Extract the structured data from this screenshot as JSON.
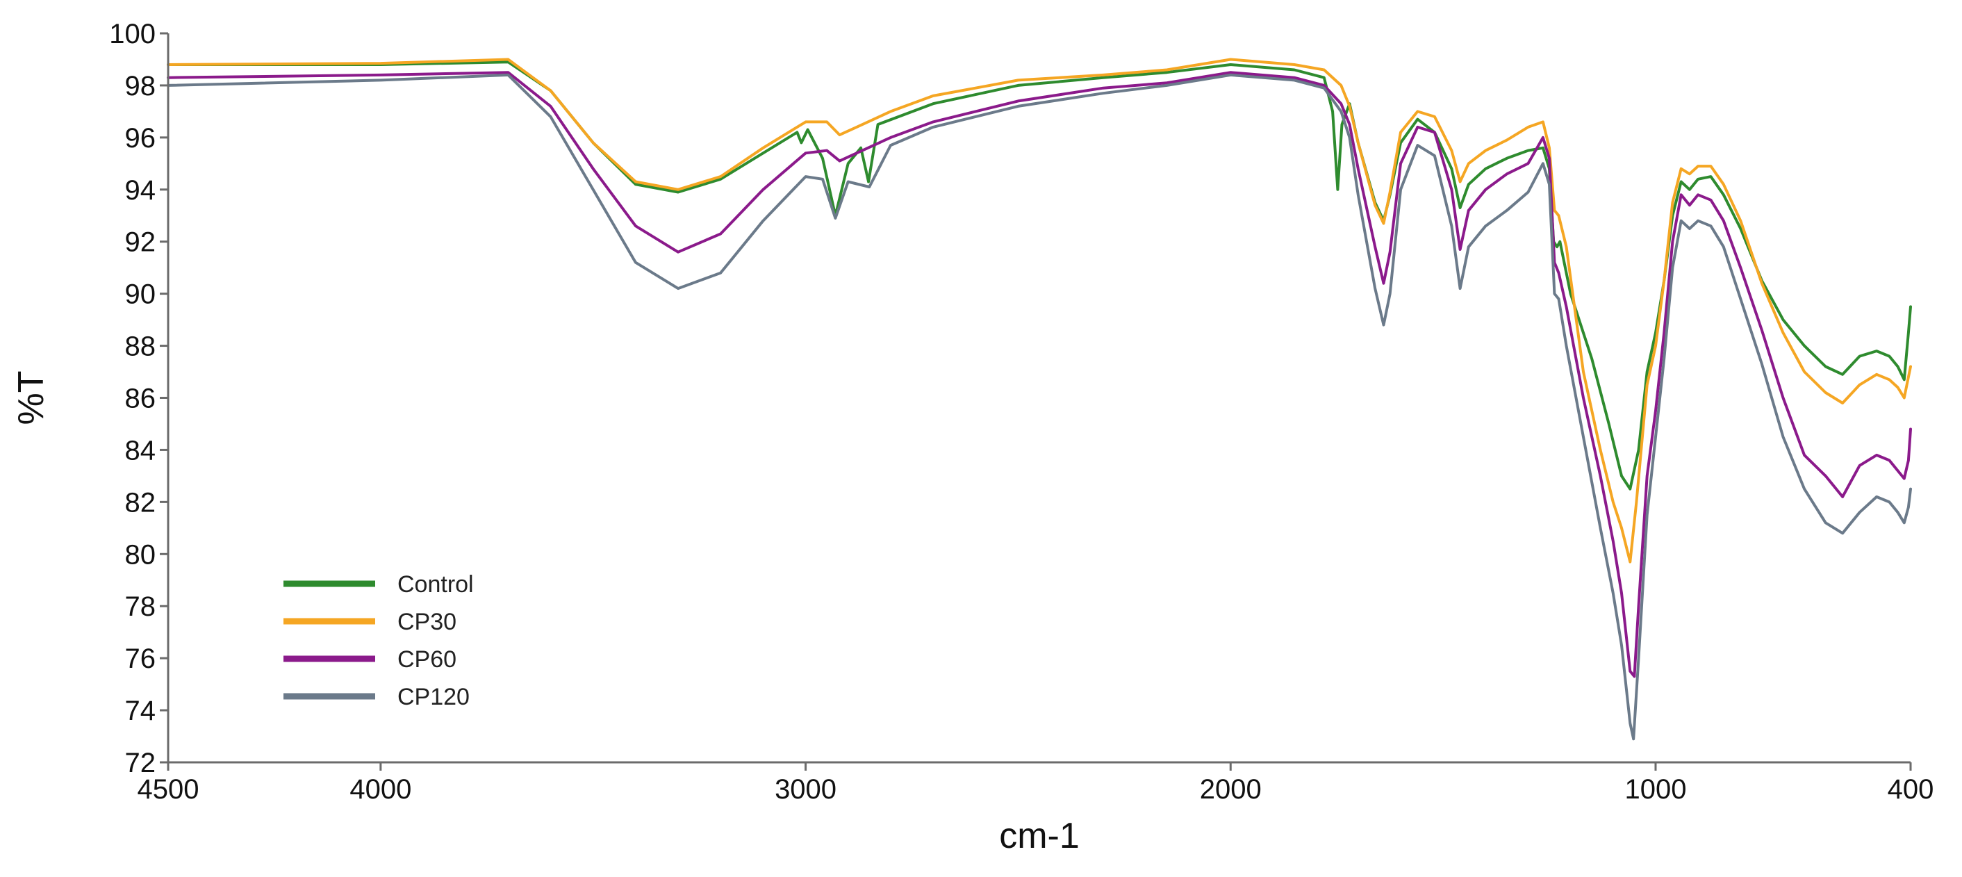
{
  "chart_data": {
    "type": "line",
    "title": "",
    "xlabel": "cm-1",
    "ylabel": "%T",
    "xlim": [
      4500,
      400
    ],
    "x_reversed": true,
    "ylim": [
      72,
      100
    ],
    "x_ticks": [
      4500,
      4000,
      3000,
      2000,
      1000,
      400
    ],
    "x_tick_labels": [
      "4500",
      "4000",
      "3000",
      "2000",
      "1000",
      "400"
    ],
    "y_ticks": [
      72,
      74,
      76,
      78,
      80,
      82,
      84,
      86,
      88,
      90,
      92,
      94,
      96,
      98,
      100
    ],
    "y_tick_labels": [
      "72",
      "74",
      "76",
      "78",
      "80",
      "82",
      "84",
      "86",
      "88",
      "90",
      "92",
      "94",
      "96",
      "98",
      "100"
    ],
    "grid": false,
    "legend_position": "bottom-left",
    "series": [
      {
        "name": "Control",
        "color": "#2e8b2e",
        "points": [
          [
            4500,
            98.8
          ],
          [
            4000,
            98.8
          ],
          [
            3700,
            98.9
          ],
          [
            3600,
            97.8
          ],
          [
            3500,
            95.8
          ],
          [
            3400,
            94.2
          ],
          [
            3300,
            93.9
          ],
          [
            3200,
            94.4
          ],
          [
            3100,
            95.4
          ],
          [
            3020,
            96.2
          ],
          [
            3010,
            95.8
          ],
          [
            2995,
            96.3
          ],
          [
            2960,
            95.2
          ],
          [
            2930,
            93.0
          ],
          [
            2900,
            95.0
          ],
          [
            2870,
            95.6
          ],
          [
            2852,
            94.3
          ],
          [
            2830,
            96.5
          ],
          [
            2700,
            97.3
          ],
          [
            2500,
            98.0
          ],
          [
            2300,
            98.3
          ],
          [
            2150,
            98.5
          ],
          [
            2000,
            98.8
          ],
          [
            1850,
            98.6
          ],
          [
            1780,
            98.3
          ],
          [
            1760,
            97.0
          ],
          [
            1748,
            94.0
          ],
          [
            1738,
            96.5
          ],
          [
            1720,
            97.3
          ],
          [
            1700,
            95.8
          ],
          [
            1660,
            93.5
          ],
          [
            1640,
            92.8
          ],
          [
            1625,
            93.8
          ],
          [
            1600,
            95.8
          ],
          [
            1560,
            96.7
          ],
          [
            1520,
            96.2
          ],
          [
            1480,
            94.8
          ],
          [
            1460,
            93.3
          ],
          [
            1440,
            94.2
          ],
          [
            1400,
            94.8
          ],
          [
            1350,
            95.2
          ],
          [
            1300,
            95.5
          ],
          [
            1265,
            95.6
          ],
          [
            1250,
            94.8
          ],
          [
            1240,
            92.0
          ],
          [
            1232,
            91.8
          ],
          [
            1225,
            92.0
          ],
          [
            1200,
            90.0
          ],
          [
            1150,
            87.5
          ],
          [
            1110,
            85.0
          ],
          [
            1080,
            83.0
          ],
          [
            1060,
            82.5
          ],
          [
            1040,
            84.0
          ],
          [
            1020,
            87.0
          ],
          [
            1000,
            88.5
          ],
          [
            980,
            90.5
          ],
          [
            960,
            93.0
          ],
          [
            940,
            94.3
          ],
          [
            920,
            94.0
          ],
          [
            900,
            94.4
          ],
          [
            870,
            94.5
          ],
          [
            840,
            93.8
          ],
          [
            800,
            92.5
          ],
          [
            750,
            90.5
          ],
          [
            700,
            89.0
          ],
          [
            650,
            88.0
          ],
          [
            600,
            87.2
          ],
          [
            560,
            86.9
          ],
          [
            520,
            87.6
          ],
          [
            480,
            87.8
          ],
          [
            450,
            87.6
          ],
          [
            430,
            87.2
          ],
          [
            415,
            86.7
          ],
          [
            405,
            88.5
          ],
          [
            400,
            89.5
          ]
        ]
      },
      {
        "name": "CP30",
        "color": "#f5a623",
        "points": [
          [
            4500,
            98.8
          ],
          [
            4000,
            98.85
          ],
          [
            3700,
            99.0
          ],
          [
            3600,
            97.8
          ],
          [
            3500,
            95.8
          ],
          [
            3400,
            94.3
          ],
          [
            3300,
            94.0
          ],
          [
            3200,
            94.5
          ],
          [
            3100,
            95.6
          ],
          [
            3000,
            96.6
          ],
          [
            2950,
            96.6
          ],
          [
            2920,
            96.1
          ],
          [
            2880,
            96.4
          ],
          [
            2800,
            97.0
          ],
          [
            2700,
            97.6
          ],
          [
            2500,
            98.2
          ],
          [
            2300,
            98.4
          ],
          [
            2150,
            98.6
          ],
          [
            2000,
            99.0
          ],
          [
            1850,
            98.8
          ],
          [
            1780,
            98.6
          ],
          [
            1740,
            98.0
          ],
          [
            1720,
            97.2
          ],
          [
            1700,
            95.8
          ],
          [
            1660,
            93.4
          ],
          [
            1640,
            92.7
          ],
          [
            1625,
            93.9
          ],
          [
            1600,
            96.2
          ],
          [
            1560,
            97.0
          ],
          [
            1520,
            96.8
          ],
          [
            1480,
            95.5
          ],
          [
            1460,
            94.3
          ],
          [
            1440,
            95.0
          ],
          [
            1400,
            95.5
          ],
          [
            1350,
            95.9
          ],
          [
            1300,
            96.4
          ],
          [
            1265,
            96.6
          ],
          [
            1250,
            95.6
          ],
          [
            1238,
            93.2
          ],
          [
            1228,
            93.0
          ],
          [
            1210,
            91.8
          ],
          [
            1170,
            87.0
          ],
          [
            1130,
            84.0
          ],
          [
            1100,
            82.0
          ],
          [
            1080,
            81.0
          ],
          [
            1060,
            79.7
          ],
          [
            1045,
            82.0
          ],
          [
            1020,
            86.5
          ],
          [
            1000,
            88.0
          ],
          [
            980,
            90.5
          ],
          [
            960,
            93.5
          ],
          [
            940,
            94.8
          ],
          [
            920,
            94.6
          ],
          [
            900,
            94.9
          ],
          [
            870,
            94.9
          ],
          [
            840,
            94.2
          ],
          [
            800,
            92.8
          ],
          [
            750,
            90.4
          ],
          [
            700,
            88.5
          ],
          [
            650,
            87.0
          ],
          [
            600,
            86.2
          ],
          [
            560,
            85.8
          ],
          [
            520,
            86.5
          ],
          [
            480,
            86.9
          ],
          [
            450,
            86.7
          ],
          [
            430,
            86.4
          ],
          [
            415,
            86.0
          ],
          [
            405,
            86.8
          ],
          [
            400,
            87.2
          ]
        ]
      },
      {
        "name": "CP60",
        "color": "#8b1a8b",
        "points": [
          [
            4500,
            98.3
          ],
          [
            4000,
            98.4
          ],
          [
            3700,
            98.5
          ],
          [
            3600,
            97.2
          ],
          [
            3500,
            94.8
          ],
          [
            3400,
            92.6
          ],
          [
            3300,
            91.6
          ],
          [
            3200,
            92.3
          ],
          [
            3100,
            94.0
          ],
          [
            3000,
            95.4
          ],
          [
            2950,
            95.5
          ],
          [
            2920,
            95.1
          ],
          [
            2880,
            95.4
          ],
          [
            2800,
            96.0
          ],
          [
            2700,
            96.6
          ],
          [
            2500,
            97.4
          ],
          [
            2300,
            97.9
          ],
          [
            2150,
            98.1
          ],
          [
            2000,
            98.5
          ],
          [
            1850,
            98.3
          ],
          [
            1780,
            98.0
          ],
          [
            1740,
            97.3
          ],
          [
            1720,
            96.5
          ],
          [
            1700,
            94.8
          ],
          [
            1660,
            91.8
          ],
          [
            1640,
            90.4
          ],
          [
            1625,
            91.6
          ],
          [
            1600,
            95.0
          ],
          [
            1560,
            96.4
          ],
          [
            1520,
            96.2
          ],
          [
            1480,
            94.0
          ],
          [
            1460,
            91.7
          ],
          [
            1440,
            93.2
          ],
          [
            1400,
            94.0
          ],
          [
            1350,
            94.6
          ],
          [
            1300,
            95.0
          ],
          [
            1265,
            96.0
          ],
          [
            1250,
            95.2
          ],
          [
            1238,
            91.2
          ],
          [
            1228,
            90.8
          ],
          [
            1210,
            89.5
          ],
          [
            1170,
            86.0
          ],
          [
            1130,
            83.0
          ],
          [
            1100,
            80.5
          ],
          [
            1080,
            78.5
          ],
          [
            1060,
            75.5
          ],
          [
            1050,
            75.3
          ],
          [
            1040,
            78.0
          ],
          [
            1020,
            83.0
          ],
          [
            1000,
            85.5
          ],
          [
            980,
            88.5
          ],
          [
            960,
            92.0
          ],
          [
            940,
            93.8
          ],
          [
            920,
            93.4
          ],
          [
            900,
            93.8
          ],
          [
            870,
            93.6
          ],
          [
            840,
            92.8
          ],
          [
            800,
            91.0
          ],
          [
            750,
            88.6
          ],
          [
            700,
            86.0
          ],
          [
            650,
            83.8
          ],
          [
            600,
            83.0
          ],
          [
            560,
            82.2
          ],
          [
            520,
            83.4
          ],
          [
            480,
            83.8
          ],
          [
            450,
            83.6
          ],
          [
            430,
            83.2
          ],
          [
            415,
            82.9
          ],
          [
            405,
            83.6
          ],
          [
            400,
            84.8
          ]
        ]
      },
      {
        "name": "CP120",
        "color": "#6b7a8a",
        "points": [
          [
            4500,
            98.0
          ],
          [
            4000,
            98.2
          ],
          [
            3700,
            98.4
          ],
          [
            3600,
            96.8
          ],
          [
            3500,
            94.0
          ],
          [
            3400,
            91.2
          ],
          [
            3300,
            90.2
          ],
          [
            3200,
            90.8
          ],
          [
            3100,
            92.8
          ],
          [
            3000,
            94.5
          ],
          [
            2960,
            94.4
          ],
          [
            2930,
            92.9
          ],
          [
            2900,
            94.3
          ],
          [
            2850,
            94.1
          ],
          [
            2800,
            95.7
          ],
          [
            2700,
            96.4
          ],
          [
            2500,
            97.2
          ],
          [
            2300,
            97.7
          ],
          [
            2150,
            98.0
          ],
          [
            2000,
            98.4
          ],
          [
            1850,
            98.2
          ],
          [
            1780,
            97.9
          ],
          [
            1740,
            97.0
          ],
          [
            1720,
            96.0
          ],
          [
            1700,
            93.8
          ],
          [
            1660,
            90.2
          ],
          [
            1640,
            88.8
          ],
          [
            1625,
            90.0
          ],
          [
            1600,
            94.0
          ],
          [
            1560,
            95.7
          ],
          [
            1520,
            95.3
          ],
          [
            1480,
            92.6
          ],
          [
            1460,
            90.2
          ],
          [
            1440,
            91.8
          ],
          [
            1400,
            92.6
          ],
          [
            1350,
            93.2
          ],
          [
            1300,
            93.9
          ],
          [
            1265,
            95.0
          ],
          [
            1250,
            94.2
          ],
          [
            1238,
            90.0
          ],
          [
            1228,
            89.8
          ],
          [
            1210,
            88.0
          ],
          [
            1170,
            84.5
          ],
          [
            1130,
            81.0
          ],
          [
            1100,
            78.5
          ],
          [
            1080,
            76.5
          ],
          [
            1060,
            73.5
          ],
          [
            1052,
            72.9
          ],
          [
            1040,
            76.0
          ],
          [
            1020,
            81.5
          ],
          [
            1000,
            84.5
          ],
          [
            980,
            87.5
          ],
          [
            960,
            91.0
          ],
          [
            940,
            92.8
          ],
          [
            920,
            92.5
          ],
          [
            900,
            92.8
          ],
          [
            870,
            92.6
          ],
          [
            840,
            91.8
          ],
          [
            800,
            89.8
          ],
          [
            750,
            87.3
          ],
          [
            700,
            84.5
          ],
          [
            650,
            82.5
          ],
          [
            600,
            81.2
          ],
          [
            560,
            80.8
          ],
          [
            520,
            81.6
          ],
          [
            480,
            82.2
          ],
          [
            450,
            82.0
          ],
          [
            430,
            81.6
          ],
          [
            415,
            81.2
          ],
          [
            405,
            81.8
          ],
          [
            400,
            82.5
          ]
        ]
      }
    ]
  }
}
